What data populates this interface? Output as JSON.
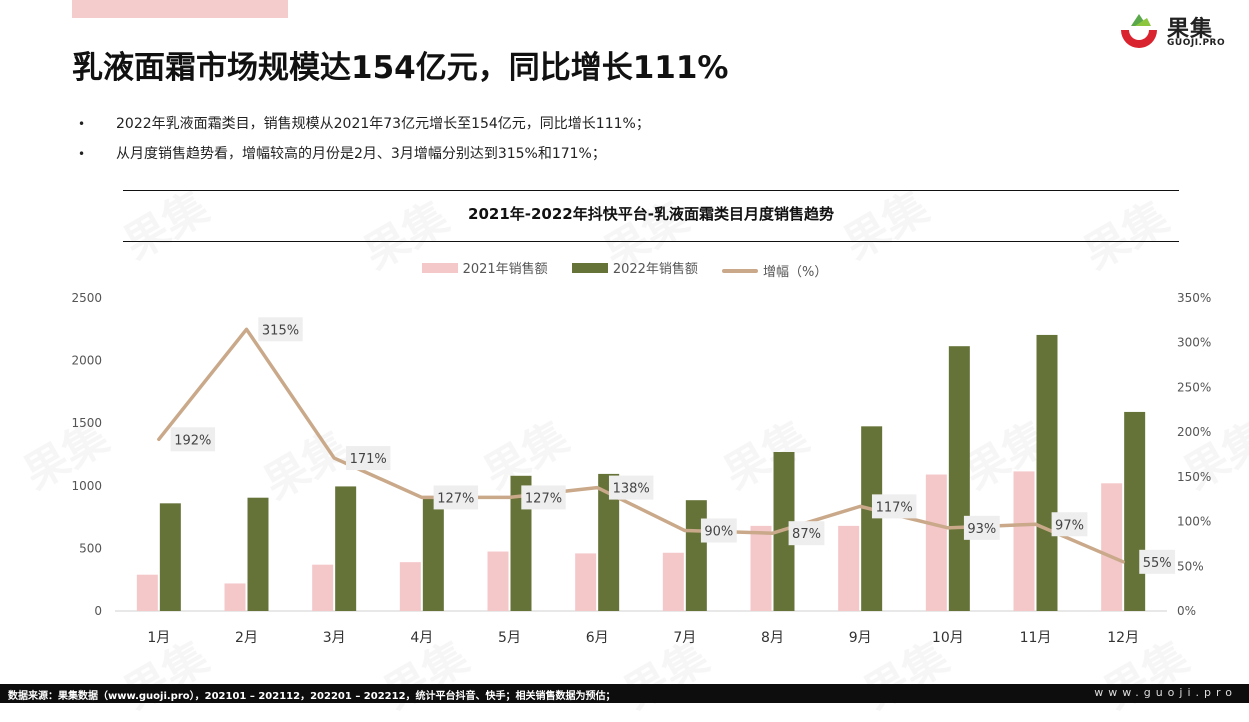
{
  "page": {
    "title": "乳液面霜市场规模达154亿元，同比增长111%",
    "bullets": [
      "2022年乳液面霜类目，销售规模从2021年73亿元增长至154亿元，同比增长111%；",
      "从月度销售趋势看，增幅较高的月份是2月、3月增幅分别达到315%和171%；"
    ],
    "logo": {
      "name": "果集",
      "sub": "GUOJI.PRO"
    },
    "footer": {
      "source": "数据来源：果集数据（www.guoji.pro），202101 – 202112，202201 – 202212，统计平台抖音、快手；相关销售数据为预估；",
      "site": "www.guoji.pro"
    },
    "watermark": "果集"
  },
  "chart_data": {
    "type": "bar",
    "title": "2021年-2022年抖快平台-乳液面霜类目月度销售趋势",
    "categories": [
      "1月",
      "2月",
      "3月",
      "4月",
      "5月",
      "6月",
      "7月",
      "8月",
      "9月",
      "10月",
      "11月",
      "12月"
    ],
    "series": [
      {
        "name": "2021年销售额",
        "type": "bar",
        "axis": "left",
        "color": "#f4c7c9",
        "values": [
          290,
          220,
          370,
          390,
          475,
          460,
          465,
          680,
          680,
          1090,
          1115,
          1020
        ]
      },
      {
        "name": "2022年销售额",
        "type": "bar",
        "axis": "left",
        "color": "#657338",
        "values": [
          860,
          905,
          995,
          900,
          1080,
          1095,
          885,
          1270,
          1475,
          2115,
          2205,
          1590
        ]
      },
      {
        "name": "增幅（%）",
        "type": "line",
        "axis": "right",
        "color": "#c9a98a",
        "values": [
          192,
          315,
          171,
          127,
          127,
          138,
          90,
          87,
          117,
          93,
          97,
          55
        ],
        "labels": [
          "192%",
          "315%",
          "171%",
          "127%",
          "127%",
          "138%",
          "90%",
          "87%",
          "117%",
          "93%",
          "97%",
          "55%"
        ]
      }
    ],
    "left_axis": {
      "min": 0,
      "max": 2500,
      "ticks": [
        "0",
        "500",
        "1000",
        "1500",
        "2000",
        "2500"
      ]
    },
    "right_axis": {
      "min": 0,
      "max": 350,
      "ticks": [
        "0%",
        "50%",
        "100%",
        "150%",
        "200%",
        "250%",
        "300%",
        "350%"
      ]
    },
    "legend_position": "top",
    "grid": false
  }
}
